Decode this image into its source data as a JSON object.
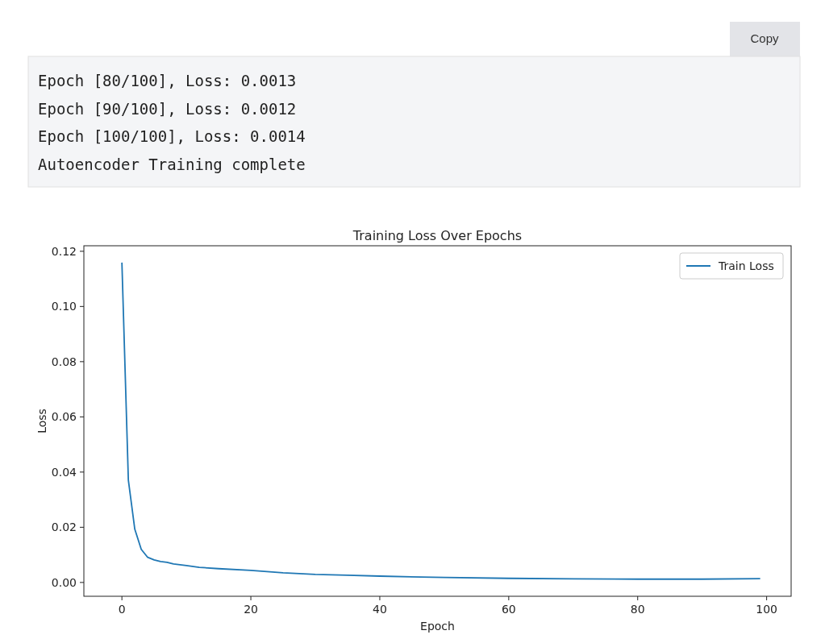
{
  "chart_data": {
    "type": "line",
    "title": "Training Loss Over Epochs",
    "xlabel": "Epoch",
    "ylabel": "Loss",
    "annotations": [
      "Copy",
      "Epoch [80/100], Loss: 0.0013",
      "Epoch [90/100], Loss: 0.0012",
      "Epoch [100/100], Loss: 0.0014",
      "Autoencoder Training complete"
    ],
    "series": [
      {
        "name": "Train Loss",
        "color": "#1f77b4",
        "x": [
          0,
          1,
          2,
          3,
          4,
          5,
          6,
          7,
          8,
          10,
          12,
          15,
          20,
          25,
          30,
          35,
          40,
          50,
          60,
          70,
          80,
          90,
          99
        ],
        "values": [
          0.1159,
          0.0371,
          0.0193,
          0.012,
          0.0091,
          0.0082,
          0.0076,
          0.0073,
          0.0067,
          0.0061,
          0.0055,
          0.005,
          0.0044,
          0.0035,
          0.0029,
          0.0026,
          0.0023,
          0.0018,
          0.0015,
          0.0013,
          0.0012,
          0.0012,
          0.0014
        ]
      }
    ],
    "xlim": [
      -5.9,
      103.8
    ],
    "ylim": [
      -0.005,
      0.122
    ],
    "xticks": [
      0,
      20,
      40,
      60,
      80,
      100
    ],
    "yticks": [
      {
        "value": 0,
        "label": "0.00"
      },
      {
        "value": 0.02,
        "label": "0.02"
      },
      {
        "value": 0.04,
        "label": "0.04"
      },
      {
        "value": 0.06,
        "label": "0.06"
      },
      {
        "value": 0.08,
        "label": "0.08"
      },
      {
        "value": 0.1,
        "label": "0.10"
      },
      {
        "value": 0.12,
        "label": "0.12"
      }
    ],
    "legend": "top right",
    "grid": false,
    "marker": "none",
    "line_style": "solid"
  }
}
